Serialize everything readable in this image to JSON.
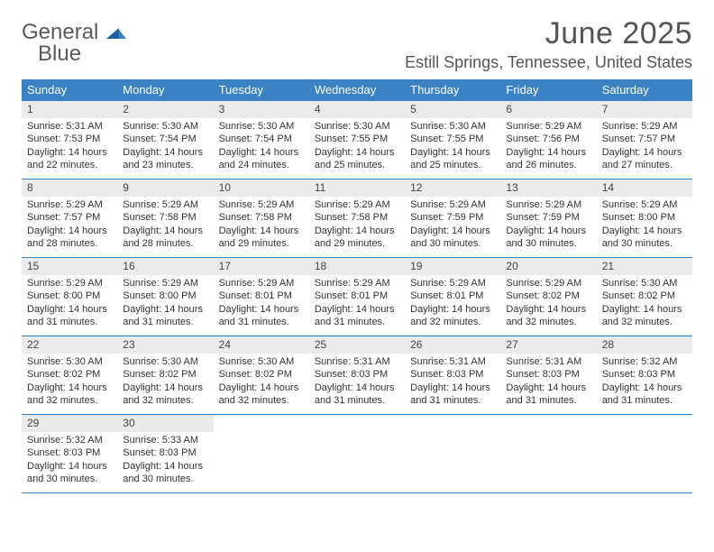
{
  "logo": {
    "text_top": "General",
    "text_bottom": "Blue"
  },
  "title": {
    "month": "June 2025",
    "location": "Estill Springs, Tennessee, United States"
  },
  "colors": {
    "header_bg": "#3b82c4",
    "header_text": "#ffffff",
    "daynum_bg": "#ebebeb",
    "body_text": "#333333",
    "week_border": "#3b82c4",
    "logo_gray": "#5a5a5a",
    "logo_blue": "#3b82c4",
    "background": "#ffffff"
  },
  "day_headers": [
    "Sunday",
    "Monday",
    "Tuesday",
    "Wednesday",
    "Thursday",
    "Friday",
    "Saturday"
  ],
  "weeks": [
    [
      {
        "n": "1",
        "sunrise": "Sunrise: 5:31 AM",
        "sunset": "Sunset: 7:53 PM",
        "daylight": "Daylight: 14 hours and 22 minutes."
      },
      {
        "n": "2",
        "sunrise": "Sunrise: 5:30 AM",
        "sunset": "Sunset: 7:54 PM",
        "daylight": "Daylight: 14 hours and 23 minutes."
      },
      {
        "n": "3",
        "sunrise": "Sunrise: 5:30 AM",
        "sunset": "Sunset: 7:54 PM",
        "daylight": "Daylight: 14 hours and 24 minutes."
      },
      {
        "n": "4",
        "sunrise": "Sunrise: 5:30 AM",
        "sunset": "Sunset: 7:55 PM",
        "daylight": "Daylight: 14 hours and 25 minutes."
      },
      {
        "n": "5",
        "sunrise": "Sunrise: 5:30 AM",
        "sunset": "Sunset: 7:55 PM",
        "daylight": "Daylight: 14 hours and 25 minutes."
      },
      {
        "n": "6",
        "sunrise": "Sunrise: 5:29 AM",
        "sunset": "Sunset: 7:56 PM",
        "daylight": "Daylight: 14 hours and 26 minutes."
      },
      {
        "n": "7",
        "sunrise": "Sunrise: 5:29 AM",
        "sunset": "Sunset: 7:57 PM",
        "daylight": "Daylight: 14 hours and 27 minutes."
      }
    ],
    [
      {
        "n": "8",
        "sunrise": "Sunrise: 5:29 AM",
        "sunset": "Sunset: 7:57 PM",
        "daylight": "Daylight: 14 hours and 28 minutes."
      },
      {
        "n": "9",
        "sunrise": "Sunrise: 5:29 AM",
        "sunset": "Sunset: 7:58 PM",
        "daylight": "Daylight: 14 hours and 28 minutes."
      },
      {
        "n": "10",
        "sunrise": "Sunrise: 5:29 AM",
        "sunset": "Sunset: 7:58 PM",
        "daylight": "Daylight: 14 hours and 29 minutes."
      },
      {
        "n": "11",
        "sunrise": "Sunrise: 5:29 AM",
        "sunset": "Sunset: 7:58 PM",
        "daylight": "Daylight: 14 hours and 29 minutes."
      },
      {
        "n": "12",
        "sunrise": "Sunrise: 5:29 AM",
        "sunset": "Sunset: 7:59 PM",
        "daylight": "Daylight: 14 hours and 30 minutes."
      },
      {
        "n": "13",
        "sunrise": "Sunrise: 5:29 AM",
        "sunset": "Sunset: 7:59 PM",
        "daylight": "Daylight: 14 hours and 30 minutes."
      },
      {
        "n": "14",
        "sunrise": "Sunrise: 5:29 AM",
        "sunset": "Sunset: 8:00 PM",
        "daylight": "Daylight: 14 hours and 30 minutes."
      }
    ],
    [
      {
        "n": "15",
        "sunrise": "Sunrise: 5:29 AM",
        "sunset": "Sunset: 8:00 PM",
        "daylight": "Daylight: 14 hours and 31 minutes."
      },
      {
        "n": "16",
        "sunrise": "Sunrise: 5:29 AM",
        "sunset": "Sunset: 8:00 PM",
        "daylight": "Daylight: 14 hours and 31 minutes."
      },
      {
        "n": "17",
        "sunrise": "Sunrise: 5:29 AM",
        "sunset": "Sunset: 8:01 PM",
        "daylight": "Daylight: 14 hours and 31 minutes."
      },
      {
        "n": "18",
        "sunrise": "Sunrise: 5:29 AM",
        "sunset": "Sunset: 8:01 PM",
        "daylight": "Daylight: 14 hours and 31 minutes."
      },
      {
        "n": "19",
        "sunrise": "Sunrise: 5:29 AM",
        "sunset": "Sunset: 8:01 PM",
        "daylight": "Daylight: 14 hours and 32 minutes."
      },
      {
        "n": "20",
        "sunrise": "Sunrise: 5:29 AM",
        "sunset": "Sunset: 8:02 PM",
        "daylight": "Daylight: 14 hours and 32 minutes."
      },
      {
        "n": "21",
        "sunrise": "Sunrise: 5:30 AM",
        "sunset": "Sunset: 8:02 PM",
        "daylight": "Daylight: 14 hours and 32 minutes."
      }
    ],
    [
      {
        "n": "22",
        "sunrise": "Sunrise: 5:30 AM",
        "sunset": "Sunset: 8:02 PM",
        "daylight": "Daylight: 14 hours and 32 minutes."
      },
      {
        "n": "23",
        "sunrise": "Sunrise: 5:30 AM",
        "sunset": "Sunset: 8:02 PM",
        "daylight": "Daylight: 14 hours and 32 minutes."
      },
      {
        "n": "24",
        "sunrise": "Sunrise: 5:30 AM",
        "sunset": "Sunset: 8:02 PM",
        "daylight": "Daylight: 14 hours and 32 minutes."
      },
      {
        "n": "25",
        "sunrise": "Sunrise: 5:31 AM",
        "sunset": "Sunset: 8:03 PM",
        "daylight": "Daylight: 14 hours and 31 minutes."
      },
      {
        "n": "26",
        "sunrise": "Sunrise: 5:31 AM",
        "sunset": "Sunset: 8:03 PM",
        "daylight": "Daylight: 14 hours and 31 minutes."
      },
      {
        "n": "27",
        "sunrise": "Sunrise: 5:31 AM",
        "sunset": "Sunset: 8:03 PM",
        "daylight": "Daylight: 14 hours and 31 minutes."
      },
      {
        "n": "28",
        "sunrise": "Sunrise: 5:32 AM",
        "sunset": "Sunset: 8:03 PM",
        "daylight": "Daylight: 14 hours and 31 minutes."
      }
    ],
    [
      {
        "n": "29",
        "sunrise": "Sunrise: 5:32 AM",
        "sunset": "Sunset: 8:03 PM",
        "daylight": "Daylight: 14 hours and 30 minutes."
      },
      {
        "n": "30",
        "sunrise": "Sunrise: 5:33 AM",
        "sunset": "Sunset: 8:03 PM",
        "daylight": "Daylight: 14 hours and 30 minutes."
      },
      null,
      null,
      null,
      null,
      null
    ]
  ]
}
